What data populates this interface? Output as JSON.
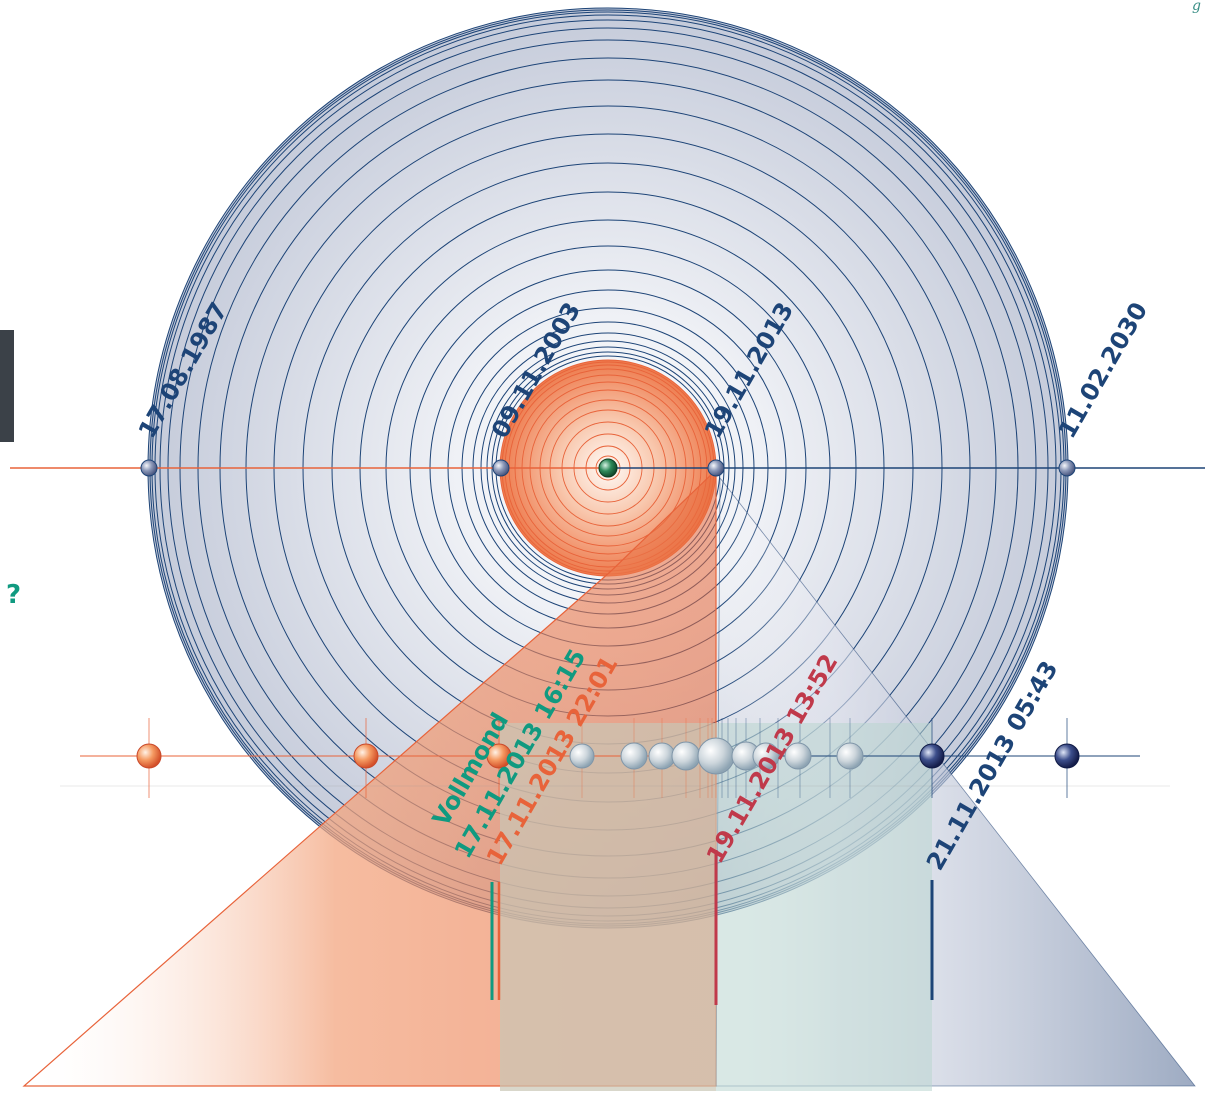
{
  "corner_text": "g",
  "question_mark": "?",
  "colors": {
    "navy": "#1d4477",
    "orange": "#e8633a",
    "teal": "#109a80",
    "red": "#c0394a",
    "blue_fill": "#dde2ec",
    "orange_fill": "#f0a27d"
  },
  "top_labels": [
    {
      "text": "17.08.1987"
    },
    {
      "text": "09.11.2003"
    },
    {
      "text": "19.11.2013"
    },
    {
      "text": "11.02.2030"
    }
  ],
  "event_labels": {
    "vollmond": "Vollmond",
    "teal_date": "17.11.2013",
    "teal_time": "16:15",
    "orange_date": "17.11.2013",
    "orange_time": "22:01",
    "red_date": "19.11.2013",
    "red_time": "13:52",
    "navy_datetime": "21.11.2013 05:43"
  }
}
